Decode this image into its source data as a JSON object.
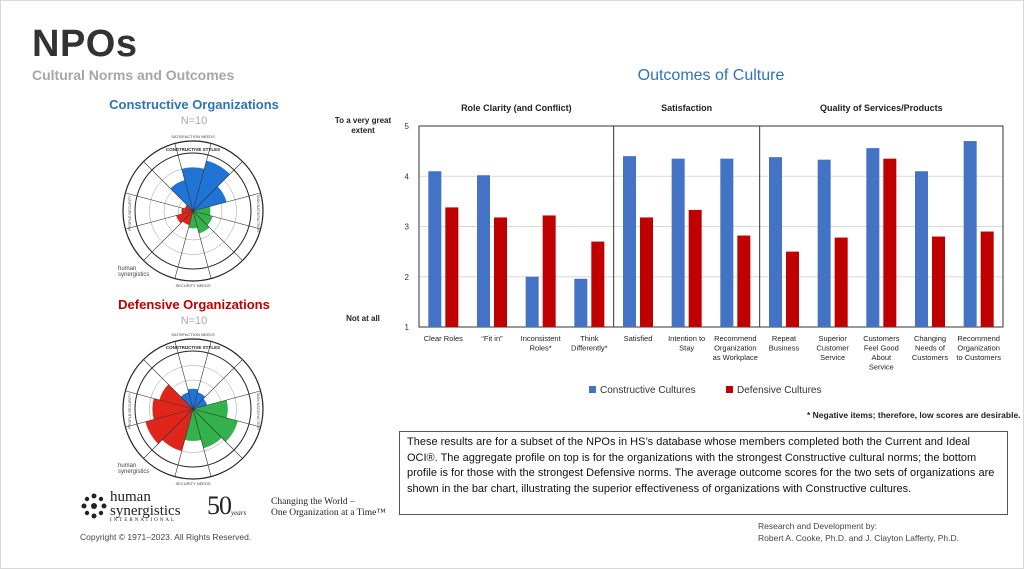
{
  "slide": {
    "title": "NPOs",
    "subtitle": "Cultural Norms and Outcomes"
  },
  "left": {
    "constructive": {
      "title": "Constructive Organizations",
      "n": "N=10"
    },
    "defensive": {
      "title": "Defensive Organizations",
      "n": "N=10"
    },
    "circumplex_labels": {
      "top": "CONSTRUCTIVE STYLES",
      "outer_top": "SATISFACTION NEEDS",
      "bottom": "SECURITY NEEDS",
      "left": "PEOPLE/SECURITY",
      "right": "TASK/SATISFACTION"
    },
    "small_logo": {
      "line1": "human",
      "line2": "synergistics"
    }
  },
  "branding": {
    "logo_line1": "human",
    "logo_line2": "synergistics",
    "logo_sub": "INTERNATIONAL",
    "anniv_number": "50",
    "anniv_word": "years",
    "tagline_line1": "Changing the World –",
    "tagline_line2": "One Organization at a Time™",
    "copyright": "Copyright © 1971–2023.  All Rights Reserved."
  },
  "chart_data": {
    "type": "bar",
    "title": "Outcomes of Culture",
    "ylim": [
      1,
      5
    ],
    "yticks": [
      1,
      2,
      3,
      4,
      5
    ],
    "ylabel_top": [
      "To a very great",
      "extent"
    ],
    "ylabel_bottom": "Not at all",
    "grid": true,
    "groups": [
      {
        "label": "Role Clarity (and Conflict)",
        "start": 0,
        "end": 3
      },
      {
        "label": "Satisfaction",
        "start": 4,
        "end": 6
      },
      {
        "label": "Quality of Services/Products",
        "start": 7,
        "end": 11
      }
    ],
    "categories": [
      [
        "Clear Roles"
      ],
      [
        "“Fit in”"
      ],
      [
        "Inconsistent",
        "Roles*"
      ],
      [
        "Think",
        "Differently*"
      ],
      [
        "Satisfied"
      ],
      [
        "Intention to",
        "Stay"
      ],
      [
        "Recommend",
        "Organization",
        "as Workplace"
      ],
      [
        "Repeat",
        "Business"
      ],
      [
        "Superior",
        "Customer",
        "Service"
      ],
      [
        "Customers",
        "Feel Good",
        "About",
        "Service"
      ],
      [
        "Changing",
        "Needs of",
        "Customers"
      ],
      [
        "Recommend",
        "Organization",
        "to Customers"
      ]
    ],
    "series": [
      {
        "name": "Constructive Cultures",
        "color": "#4472c4",
        "values": [
          4.1,
          4.02,
          2.0,
          1.96,
          4.4,
          4.35,
          4.35,
          4.38,
          4.33,
          4.56,
          4.1,
          4.7
        ]
      },
      {
        "name": "Defensive Cultures",
        "color": "#c00000",
        "values": [
          3.38,
          3.18,
          3.22,
          2.7,
          3.18,
          3.33,
          2.82,
          2.5,
          2.78,
          4.35,
          2.8,
          2.9
        ]
      }
    ],
    "legend_position": "bottom",
    "footnote": "* Negative items; therefore, low scores are desirable."
  },
  "description": "These results are for a subset of the NPOs in HS’s database whose members completed both the Current and Ideal OCI®. The aggregate profile on top is for the organizations with the strongest Constructive cultural norms; the bottom profile is for those with the strongest Defensive norms. The average outcome scores for the two sets of organizations are shown in the bar chart, illustrating the superior effectiveness of organizations with Constructive cultures.",
  "credits": {
    "line1": "Research and Development by:",
    "line2": "Robert A. Cooke, Ph.D. and J. Clayton Lafferty, Ph.D."
  },
  "profiles": {
    "constructive": {
      "blue": [
        0.55,
        0.75,
        0.9,
        0.6
      ],
      "green": [
        0.3,
        0.35,
        0.4,
        0.3
      ],
      "red": [
        0.25,
        0.3,
        0.2,
        0.15
      ]
    },
    "defensive": {
      "blue": [
        0.3,
        0.35,
        0.3,
        0.25
      ],
      "green": [
        0.6,
        0.8,
        0.7,
        0.55
      ],
      "red": [
        0.75,
        0.85,
        0.7,
        0.6
      ]
    }
  }
}
